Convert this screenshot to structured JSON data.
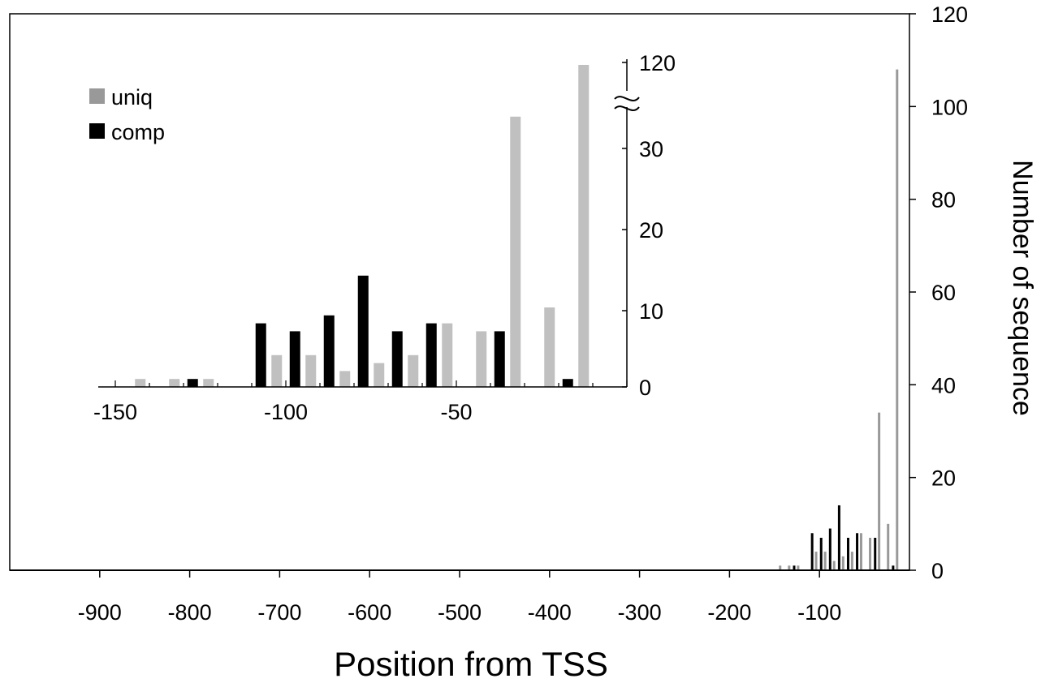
{
  "chart_data": [
    {
      "type": "bar",
      "role": "main",
      "xlabel": "Position from TSS",
      "ylabel": "Number of sequence",
      "xlim": [
        -1000,
        0
      ],
      "ylim": [
        0,
        120
      ],
      "x_ticks": [
        -900,
        -800,
        -700,
        -600,
        -500,
        -400,
        -300,
        -200,
        -100
      ],
      "x_tick_labels": [
        "-900",
        "-800",
        "-700",
        "-600",
        "-500",
        "-400",
        "-300",
        "-200",
        "-100"
      ],
      "y_ticks": [
        0,
        20,
        40,
        60,
        80,
        100,
        120
      ],
      "y_tick_labels": [
        "0",
        "20",
        "40",
        "60",
        "80",
        "100",
        "120"
      ],
      "bin_width": 10,
      "series": [
        {
          "name": "uniq",
          "color": "#999999",
          "x": [
            -140,
            -130,
            -120,
            -100,
            -90,
            -80,
            -70,
            -60,
            -50,
            -40,
            -30,
            -20,
            -10
          ],
          "values": [
            1,
            1,
            1,
            4,
            4,
            2,
            3,
            4,
            8,
            7,
            34,
            10,
            108
          ]
        },
        {
          "name": "comp",
          "color": "#000000",
          "x": [
            -120,
            -100,
            -90,
            -80,
            -70,
            -60,
            -50,
            -30,
            -10
          ],
          "values": [
            1,
            8,
            7,
            9,
            14,
            7,
            8,
            7,
            1
          ]
        }
      ]
    },
    {
      "type": "bar",
      "role": "inset",
      "xlim": [
        -155,
        0
      ],
      "ylim": [
        0,
        120
      ],
      "y_axis_break": [
        36,
        110
      ],
      "x_ticks": [
        -150,
        -100,
        -50
      ],
      "x_tick_labels": [
        "-150",
        "-100",
        "-50"
      ],
      "y_ticks": [
        0,
        10,
        20,
        30,
        120
      ],
      "y_tick_labels": [
        "0",
        "10",
        "20",
        "30",
        "120"
      ],
      "bin_width": 10,
      "legend": {
        "position": "top-left",
        "entries": [
          "uniq",
          "comp"
        ]
      },
      "series": [
        {
          "name": "uniq",
          "color": "#c0c0c0",
          "x": [
            -140,
            -130,
            -120,
            -100,
            -90,
            -80,
            -70,
            -60,
            -50,
            -40,
            -30,
            -20,
            -10
          ],
          "values": [
            1,
            1,
            1,
            4,
            4,
            2,
            3,
            4,
            8,
            7,
            34,
            10,
            108
          ]
        },
        {
          "name": "comp",
          "color": "#000000",
          "x": [
            -120,
            -100,
            -90,
            -80,
            -70,
            -60,
            -50,
            -30,
            -10
          ],
          "values": [
            1,
            8,
            7,
            9,
            14,
            7,
            8,
            7,
            1
          ]
        }
      ]
    }
  ]
}
